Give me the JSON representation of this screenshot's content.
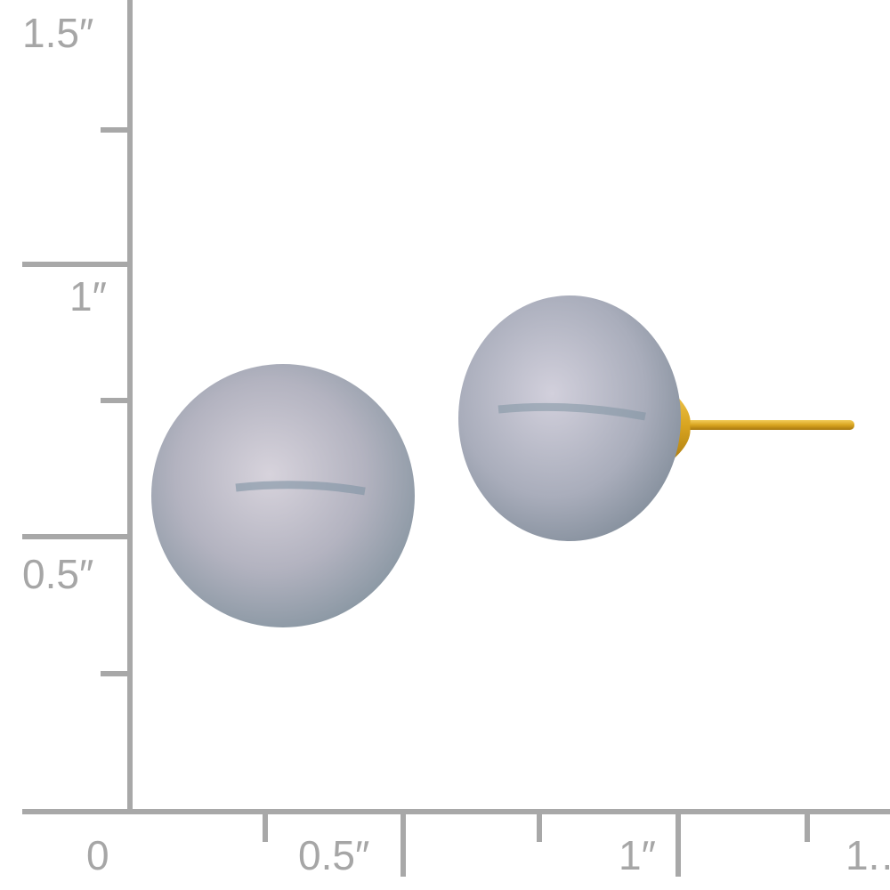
{
  "ruler": {
    "color": "#a8a8a8",
    "vertical_labels": [
      "1.5″",
      "1″",
      "0.5″"
    ],
    "horizontal_labels": [
      "0",
      "0.5″",
      "1″",
      "1.…"
    ]
  },
  "product": {
    "pearl_color": "#b4b8c4",
    "post_color": "#d9a520"
  }
}
